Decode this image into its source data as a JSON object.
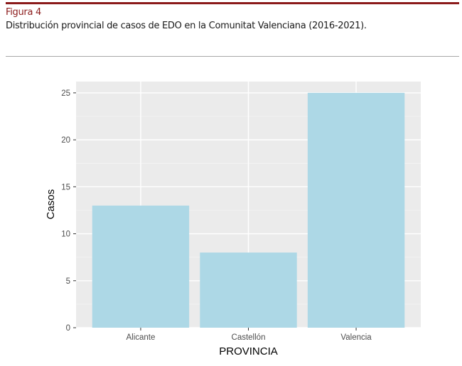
{
  "figure": {
    "label": "Figura 4",
    "caption": "Distribución provincial de casos de EDO en la Comunitat Valenciana (2016-2021)."
  },
  "colors": {
    "accent": "#8b1a1a",
    "bar_fill": "#add8e6",
    "panel_bg": "#ebebeb"
  },
  "chart_data": {
    "type": "bar",
    "title": "",
    "xlabel": "PROVINCIA",
    "ylabel": "Casos",
    "categories": [
      "Alicante",
      "Castellón",
      "Valencia"
    ],
    "values": [
      13,
      8,
      25
    ],
    "ylim": [
      0,
      26.2
    ],
    "yticks": [
      0,
      5,
      10,
      15,
      20,
      25
    ],
    "grid": true,
    "legend": "none"
  }
}
